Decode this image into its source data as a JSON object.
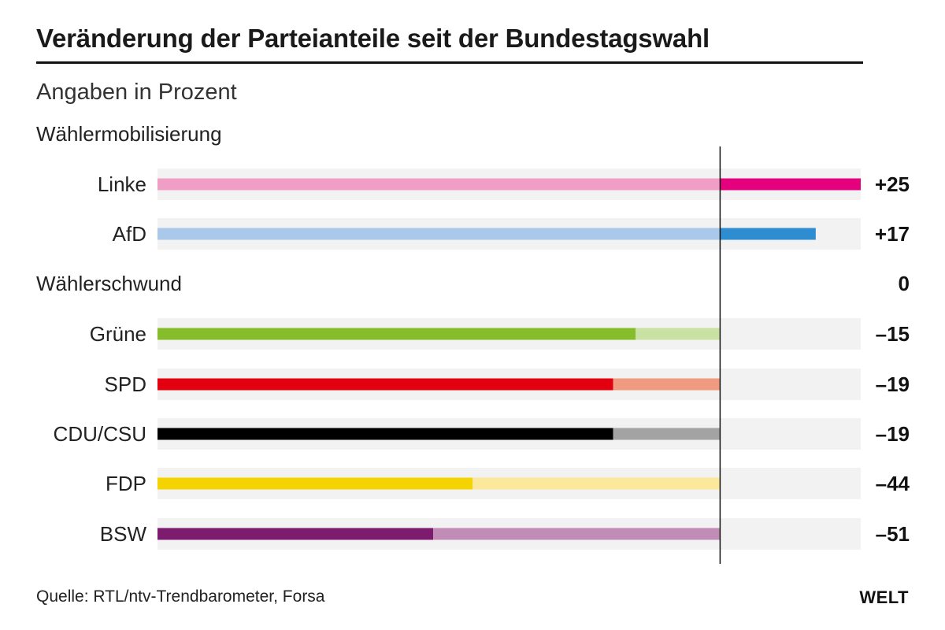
{
  "header": {
    "title": "Veränderung der Parteianteile seit der Bundestagswahl",
    "subtitle": "Angaben in Prozent"
  },
  "sections": {
    "mobilization": "Wählermobilisierung",
    "decline": "Wählerschwund",
    "decline_value": "0"
  },
  "footer": {
    "source": "Quelle: RTL/ntv-Trendbarometer, Forsa",
    "logo": "WELT"
  },
  "chart_data": {
    "type": "bar",
    "orientation": "horizontal",
    "title": "Veränderung der Parteianteile seit der Bundestagswahl",
    "subtitle": "Angaben in Prozent",
    "xlim": [
      -100,
      25
    ],
    "categories": [
      "Linke",
      "AfD",
      "Grüne",
      "SPD",
      "CDU/CSU",
      "FDP",
      "BSW"
    ],
    "values": [
      25,
      17,
      -15,
      -19,
      -19,
      -44,
      -51
    ],
    "value_labels": [
      "+25",
      "+17",
      "–15",
      "–19",
      "–19",
      "–44",
      "–51"
    ],
    "groups": [
      {
        "name": "Wählermobilisierung",
        "categories": [
          "Linke",
          "AfD"
        ]
      },
      {
        "name": "Wählerschwund",
        "categories": [
          "Grüne",
          "SPD",
          "CDU/CSU",
          "FDP",
          "BSW"
        ]
      }
    ],
    "colors": {
      "Linke": {
        "strong": "#e5007d",
        "light": "#f19ec6"
      },
      "AfD": {
        "strong": "#2e8dd0",
        "light": "#a9c8ea"
      },
      "Grüne": {
        "strong": "#86bd2a",
        "light": "#c9e2a3"
      },
      "SPD": {
        "strong": "#e3000f",
        "light": "#f09a80"
      },
      "CDU/CSU": {
        "strong": "#000000",
        "light": "#a3a3a3"
      },
      "FDP": {
        "strong": "#f5d300",
        "light": "#fbe89a"
      },
      "BSW": {
        "strong": "#7d1b6e",
        "light": "#c18db6"
      }
    },
    "background_color": "#f2f2f2",
    "zero_line_color": "#111111"
  }
}
